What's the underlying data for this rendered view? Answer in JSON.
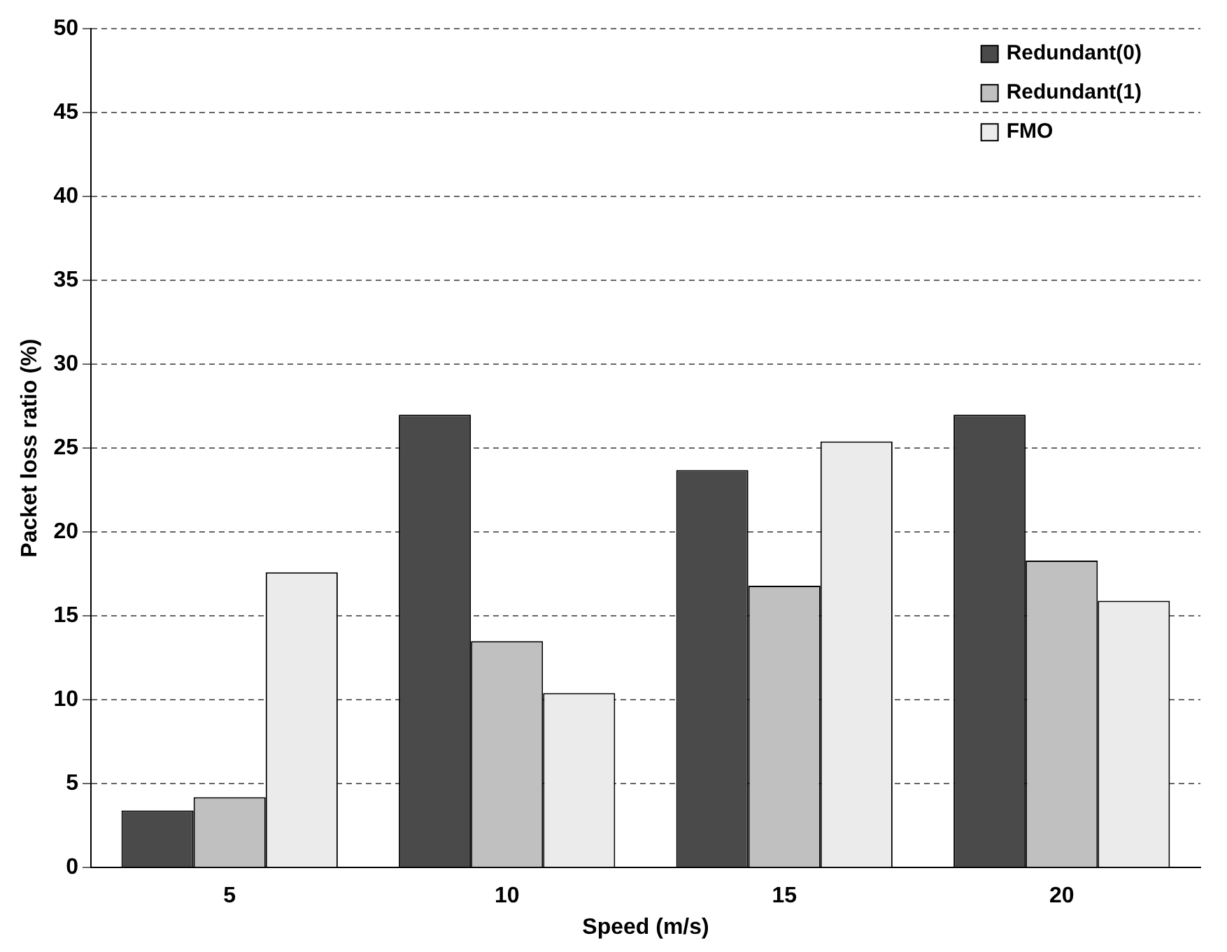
{
  "chart_data": {
    "type": "bar",
    "xlabel": "Speed (m/s)",
    "ylabel": "Packet loss ratio (%)",
    "categories": [
      "5",
      "10",
      "15",
      "20"
    ],
    "series": [
      {
        "name": "Redundant(0)",
        "color": "#4a4a4a",
        "values": [
          3.4,
          27,
          23.7,
          27
        ]
      },
      {
        "name": "Redundant(1)",
        "color": "#c0c0c0",
        "values": [
          4.2,
          13.5,
          16.8,
          18.3
        ]
      },
      {
        "name": "FMO",
        "color": "#ebebeb",
        "values": [
          17.6,
          10.4,
          25.4,
          15.9
        ]
      }
    ],
    "ylim": [
      0,
      50
    ],
    "yticks": [
      0,
      5,
      10,
      15,
      20,
      25,
      30,
      35,
      40,
      45,
      50
    ],
    "grid": "y",
    "legend": "top right"
  }
}
